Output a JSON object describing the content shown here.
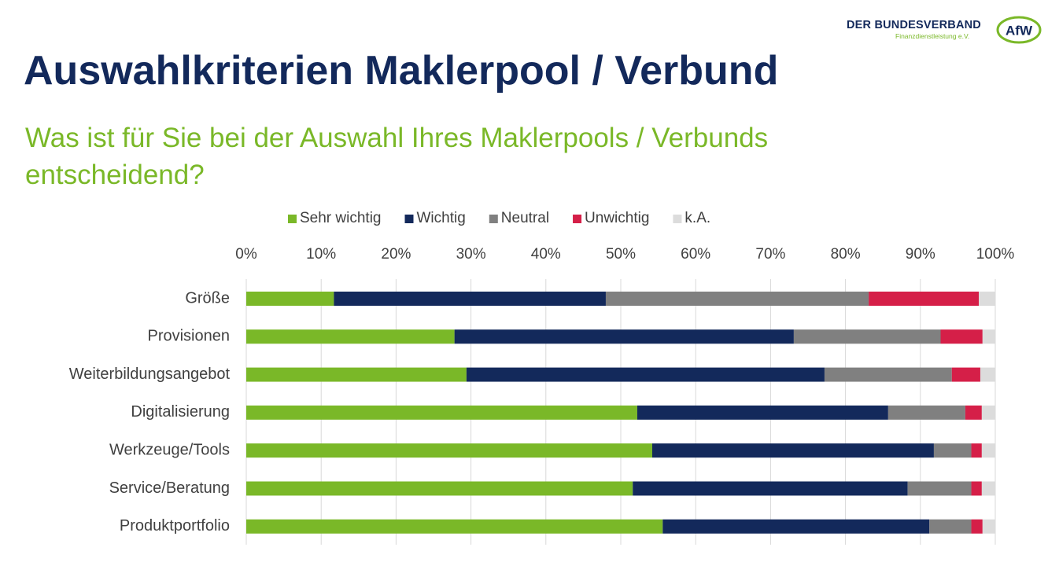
{
  "logo": {
    "name": "DER BUNDESVERBAND",
    "subline": "Finanzdienstleistung e.V.",
    "badge": "AfW",
    "colors": {
      "navy": "#13295b",
      "green": "#7ab828"
    }
  },
  "header": {
    "title": "Auswahlkriterien Maklerpool / Verbund",
    "subtitle": "Was ist für Sie bei der Auswahl Ihres Maklerpools / Verbunds entscheidend?"
  },
  "chart_data": {
    "type": "bar",
    "orientation": "horizontal",
    "stacked": true,
    "percent_scale": true,
    "legend_position": "top",
    "grid": true,
    "xlim": [
      0,
      100
    ],
    "xticks": [
      "0%",
      "10%",
      "20%",
      "30%",
      "40%",
      "50%",
      "60%",
      "70%",
      "80%",
      "90%",
      "100%"
    ],
    "categories": [
      "Größe",
      "Provisionen",
      "Weiterbildungsangebot",
      "Digitalisierung",
      "Werkzeuge/Tools",
      "Service/Beratung",
      "Produktportfolio"
    ],
    "series": [
      {
        "name": "Sehr wichtig",
        "color": "#7ab828",
        "values": [
          11.7,
          27.8,
          29.4,
          52.2,
          54.2,
          51.6,
          55.6
        ]
      },
      {
        "name": "Wichtig",
        "color": "#13295b",
        "values": [
          36.3,
          45.3,
          47.8,
          33.5,
          37.6,
          36.7,
          35.6
        ]
      },
      {
        "name": "Neutral",
        "color": "#808080",
        "values": [
          35.1,
          19.6,
          17.0,
          10.3,
          5.0,
          8.5,
          5.6
        ]
      },
      {
        "name": "Unwichtig",
        "color": "#d51f48",
        "values": [
          14.7,
          5.6,
          3.8,
          2.2,
          1.4,
          1.4,
          1.5
        ]
      },
      {
        "name": "k.A.",
        "color": "#dcdcdc",
        "values": [
          2.2,
          1.7,
          2.0,
          1.8,
          1.8,
          1.8,
          1.7
        ]
      }
    ]
  }
}
